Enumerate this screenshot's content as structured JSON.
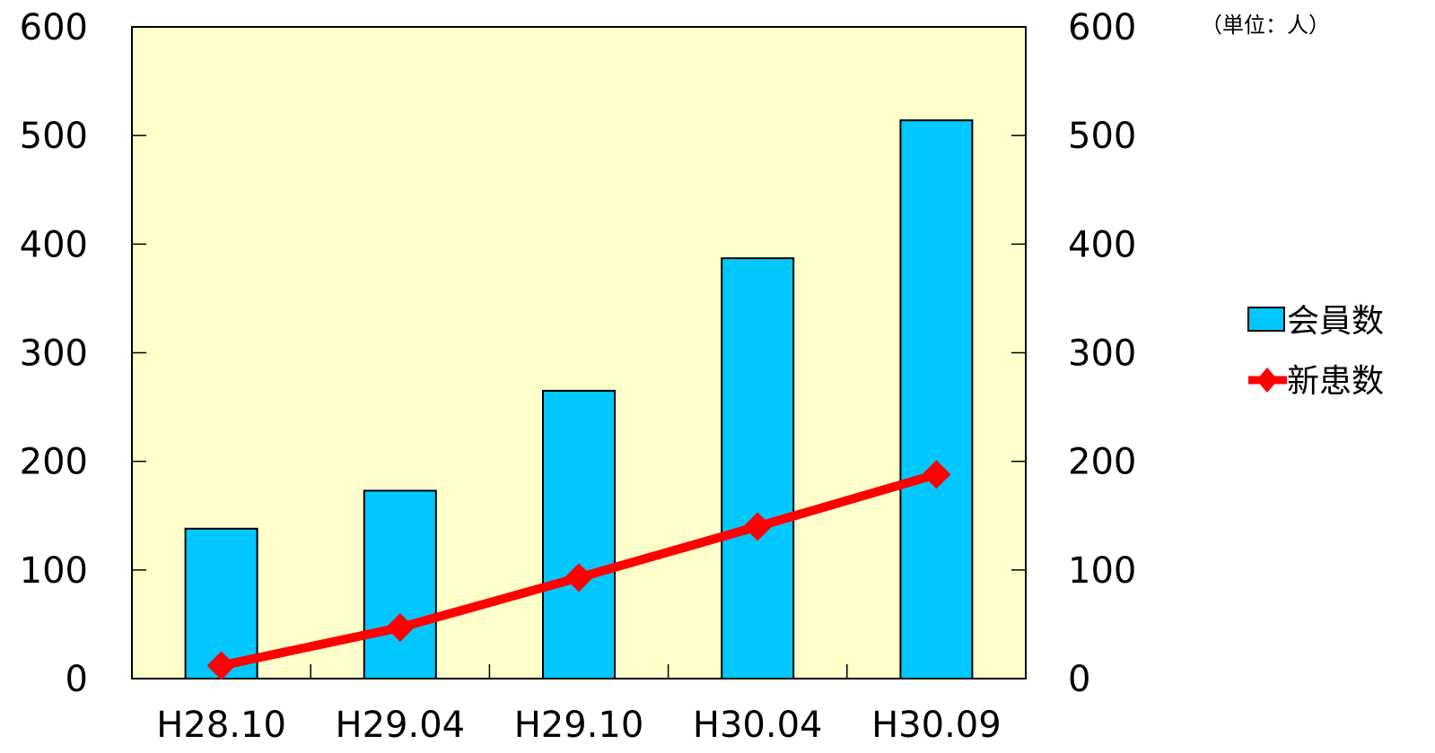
{
  "chart_data": {
    "type": "bar",
    "categories": [
      "H28.10",
      "H29.04",
      "H29.10",
      "H30.04",
      "H30.09"
    ],
    "series": [
      {
        "name": "会員数",
        "type": "bar",
        "values": [
          138,
          173,
          265,
          387,
          514
        ],
        "color": "#00c8ff"
      },
      {
        "name": "新患数",
        "type": "line",
        "values": [
          12,
          47,
          93,
          140,
          188
        ],
        "color": "#ff0000"
      }
    ],
    "unit_label": "（単位：人）",
    "ylim": [
      0,
      600
    ],
    "y2lim": [
      0,
      600
    ],
    "yticks": [
      "0",
      "100",
      "200",
      "300",
      "400",
      "500",
      "600"
    ],
    "y2ticks": [
      "0",
      "100",
      "200",
      "300",
      "400",
      "500",
      "600"
    ],
    "plot_background": "#ffffcc",
    "grid": false,
    "legend_position": "right"
  }
}
